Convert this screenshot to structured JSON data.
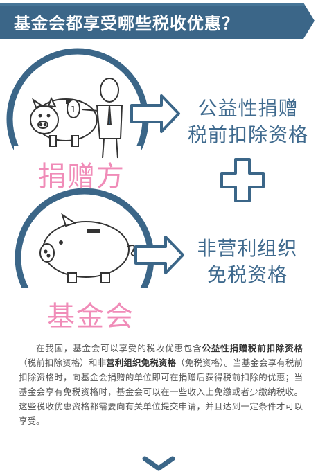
{
  "title": "基金会都享受哪些税收优惠？",
  "donor": {
    "label": "捐赠方",
    "benefit_line1": "公益性捐赠",
    "benefit_line2": "税前扣除资格"
  },
  "foundation": {
    "label": "基金会",
    "benefit_line1": "非营利组织",
    "benefit_line2": "免税资格"
  },
  "description": {
    "p1": "在我国，基金会可以享受的税收优惠包含",
    "b1": "公益性捐赠税前扣除资格",
    "p2": "（税前扣除资格）和",
    "b2": "非营利组织免税资格",
    "p3": "（免税资格）。当基金会享有税前扣除资格时，向基金会捐赠的单位即可在捐赠后获得税前扣除的优惠；当基金会享有免税资格时，基金会可以在一些收入上免缴或者少缴纳税收。这些税收优惠资格都需要向有关单位提交申请，并且达到一定条件才可以享受。"
  },
  "colors": {
    "banner": "#3b6688",
    "pink": "#f08cb8",
    "blue_text": "#3f6a8e"
  }
}
